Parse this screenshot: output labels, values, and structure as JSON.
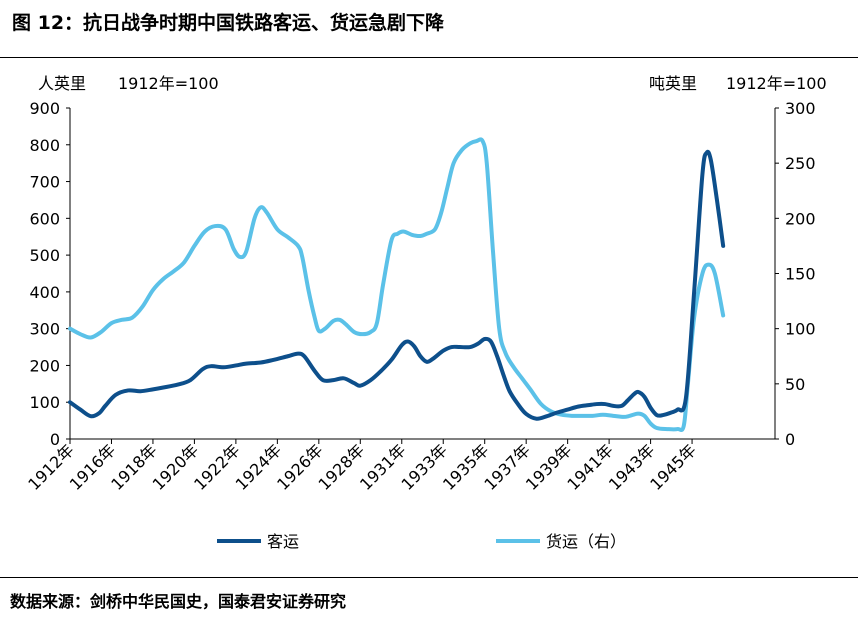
{
  "title": "图 12：抗日战争时期中国铁路客运、货运急剧下降",
  "source": "数据来源：剑桥中华民国史，国泰君安证券研究",
  "chart_data": {
    "type": "line",
    "left_unit": "人英里",
    "left_base": "1912年=100",
    "right_unit": "吨英里",
    "right_base": "1912年=100",
    "y_left_lim": [
      0,
      900
    ],
    "y_left_ticks": [
      "0",
      "100",
      "200",
      "300",
      "400",
      "500",
      "600",
      "700",
      "800",
      "900"
    ],
    "y_right_lim": [
      0,
      300
    ],
    "y_right_ticks": [
      "0",
      "50",
      "100",
      "150",
      "200",
      "250",
      "300"
    ],
    "x_lim": [
      1912,
      1946
    ],
    "x_ticks": [
      {
        "year": 1912,
        "label": "1912年"
      },
      {
        "year": 1914,
        "label": "1916年"
      },
      {
        "year": 1916,
        "label": "1918年"
      },
      {
        "year": 1918,
        "label": "1920年"
      },
      {
        "year": 1920,
        "label": "1922年"
      },
      {
        "year": 1922,
        "label": "1924年"
      },
      {
        "year": 1924,
        "label": "1926年"
      },
      {
        "year": 1926,
        "label": "1928年"
      },
      {
        "year": 1928,
        "label": "1931年"
      },
      {
        "year": 1930,
        "label": "1933年"
      },
      {
        "year": 1932,
        "label": "1935年"
      },
      {
        "year": 1934,
        "label": "1937年"
      },
      {
        "year": 1936,
        "label": "1939年"
      },
      {
        "year": 1938,
        "label": "1941年"
      },
      {
        "year": 1940,
        "label": "1943年"
      },
      {
        "year": 1942,
        "label": "1945年"
      }
    ],
    "grid": false,
    "legend_position": "bottom",
    "series": [
      {
        "name": "客运",
        "axis": "left",
        "color": "#0d4f8b",
        "points": [
          [
            1912,
            100
          ],
          [
            1912.5,
            80
          ],
          [
            1913,
            62
          ],
          [
            1913.4,
            70
          ],
          [
            1913.7,
            90
          ],
          [
            1914.2,
            120
          ],
          [
            1914.8,
            132
          ],
          [
            1915.4,
            130
          ],
          [
            1916,
            135
          ],
          [
            1916.5,
            140
          ],
          [
            1917.2,
            148
          ],
          [
            1917.8,
            160
          ],
          [
            1918.4,
            190
          ],
          [
            1918.8,
            198
          ],
          [
            1919.4,
            195
          ],
          [
            1920,
            200
          ],
          [
            1920.5,
            205
          ],
          [
            1921.2,
            208
          ],
          [
            1921.8,
            215
          ],
          [
            1922.5,
            225
          ],
          [
            1923,
            232
          ],
          [
            1923.3,
            225
          ],
          [
            1923.8,
            185
          ],
          [
            1924.2,
            160
          ],
          [
            1924.7,
            160
          ],
          [
            1925.2,
            165
          ],
          [
            1925.7,
            152
          ],
          [
            1926,
            145
          ],
          [
            1926.5,
            160
          ],
          [
            1927,
            185
          ],
          [
            1927.5,
            215
          ],
          [
            1928,
            255
          ],
          [
            1928.3,
            265
          ],
          [
            1928.6,
            252
          ],
          [
            1928.9,
            225
          ],
          [
            1929.2,
            210
          ],
          [
            1929.5,
            218
          ],
          [
            1930,
            240
          ],
          [
            1930.4,
            250
          ],
          [
            1930.8,
            250
          ],
          [
            1931.3,
            250
          ],
          [
            1931.7,
            260
          ],
          [
            1932,
            272
          ],
          [
            1932.3,
            265
          ],
          [
            1932.6,
            225
          ],
          [
            1932.9,
            175
          ],
          [
            1933.2,
            130
          ],
          [
            1933.6,
            95
          ],
          [
            1934,
            68
          ],
          [
            1934.5,
            55
          ],
          [
            1935,
            62
          ],
          [
            1935.5,
            72
          ],
          [
            1936,
            80
          ],
          [
            1936.5,
            88
          ],
          [
            1937,
            92
          ],
          [
            1937.4,
            95
          ],
          [
            1937.8,
            95
          ],
          [
            1938.2,
            90
          ],
          [
            1938.6,
            90
          ],
          [
            1938.9,
            105
          ],
          [
            1939.2,
            122
          ],
          [
            1939.4,
            128
          ],
          [
            1939.7,
            115
          ],
          [
            1940,
            85
          ],
          [
            1940.3,
            65
          ],
          [
            1940.6,
            65
          ],
          [
            1941,
            72
          ],
          [
            1941.3,
            80
          ],
          [
            1941.7,
            110
          ],
          [
            1942.1,
            400
          ],
          [
            1942.5,
            720
          ],
          [
            1942.7,
            778
          ],
          [
            1942.9,
            760
          ],
          [
            1943.2,
            650
          ],
          [
            1943.5,
            525
          ]
        ]
      },
      {
        "name": "货运（右）",
        "axis": "right",
        "color": "#5bc1e8",
        "points": [
          [
            1912,
            100
          ],
          [
            1912.5,
            95
          ],
          [
            1913,
            92
          ],
          [
            1913.5,
            97
          ],
          [
            1914,
            105
          ],
          [
            1914.5,
            108
          ],
          [
            1915,
            110
          ],
          [
            1915.5,
            120
          ],
          [
            1916,
            135
          ],
          [
            1916.5,
            145
          ],
          [
            1917,
            152
          ],
          [
            1917.5,
            160
          ],
          [
            1918,
            175
          ],
          [
            1918.5,
            188
          ],
          [
            1919,
            193
          ],
          [
            1919.5,
            190
          ],
          [
            1919.9,
            172
          ],
          [
            1920.2,
            165
          ],
          [
            1920.5,
            170
          ],
          [
            1920.9,
            200
          ],
          [
            1921.2,
            210
          ],
          [
            1921.5,
            205
          ],
          [
            1922,
            190
          ],
          [
            1922.5,
            183
          ],
          [
            1923,
            175
          ],
          [
            1923.2,
            165
          ],
          [
            1923.5,
            135
          ],
          [
            1923.8,
            110
          ],
          [
            1924,
            98
          ],
          [
            1924.3,
            100
          ],
          [
            1924.7,
            107
          ],
          [
            1925,
            108
          ],
          [
            1925.3,
            104
          ],
          [
            1925.7,
            97
          ],
          [
            1926.1,
            95
          ],
          [
            1926.5,
            97
          ],
          [
            1926.8,
            105
          ],
          [
            1927.1,
            140
          ],
          [
            1927.5,
            180
          ],
          [
            1927.8,
            186
          ],
          [
            1928.1,
            188
          ],
          [
            1928.5,
            185
          ],
          [
            1928.9,
            184
          ],
          [
            1929.2,
            186
          ],
          [
            1929.6,
            190
          ],
          [
            1929.9,
            205
          ],
          [
            1930.2,
            228
          ],
          [
            1930.5,
            250
          ],
          [
            1930.9,
            262
          ],
          [
            1931.3,
            268
          ],
          [
            1931.6,
            270
          ],
          [
            1931.9,
            270
          ],
          [
            1932.1,
            250
          ],
          [
            1932.4,
            170
          ],
          [
            1932.7,
            100
          ],
          [
            1933,
            78
          ],
          [
            1933.4,
            65
          ],
          [
            1933.8,
            55
          ],
          [
            1934.2,
            45
          ],
          [
            1934.7,
            32
          ],
          [
            1935.2,
            25
          ],
          [
            1935.7,
            22
          ],
          [
            1936.2,
            21
          ],
          [
            1936.7,
            21
          ],
          [
            1937.2,
            21
          ],
          [
            1937.7,
            22
          ],
          [
            1938.2,
            21
          ],
          [
            1938.7,
            20
          ],
          [
            1939,
            21
          ],
          [
            1939.4,
            23
          ],
          [
            1939.7,
            21
          ],
          [
            1940,
            14
          ],
          [
            1940.3,
            10
          ],
          [
            1940.8,
            9
          ],
          [
            1941.3,
            9
          ],
          [
            1941.6,
            12
          ],
          [
            1941.8,
            50
          ],
          [
            1942.1,
            110
          ],
          [
            1942.5,
            150
          ],
          [
            1942.8,
            158
          ],
          [
            1943.1,
            150
          ],
          [
            1943.5,
            112
          ]
        ]
      }
    ]
  }
}
